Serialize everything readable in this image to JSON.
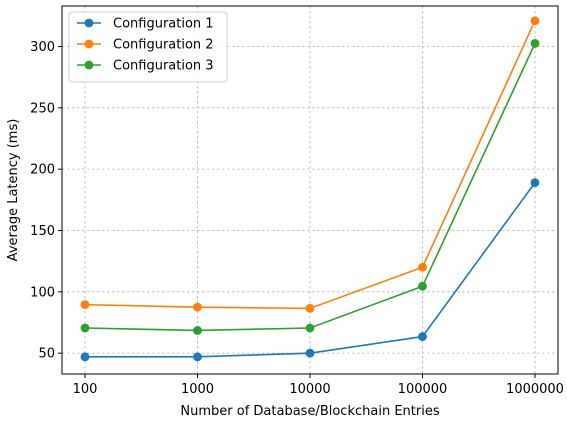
{
  "chart_data": {
    "type": "line",
    "title": "",
    "xlabel": "Number of Database/Blockchain Entries",
    "ylabel": "Average Latency (ms)",
    "categories": [
      "100",
      "1000",
      "10000",
      "100000",
      "1000000"
    ],
    "ylim": [
      33,
      333
    ],
    "yticks": [
      50,
      100,
      150,
      200,
      250,
      300
    ],
    "grid": true,
    "legend_position": "top-left",
    "series": [
      {
        "name": "Configuration 1",
        "color": "#1f77b4",
        "values": [
          47,
          47,
          50,
          63.5,
          189
        ]
      },
      {
        "name": "Configuration 2",
        "color": "#ff7f0e",
        "values": [
          89.5,
          87.5,
          86.5,
          120,
          321
        ]
      },
      {
        "name": "Configuration 3",
        "color": "#2ca02c",
        "values": [
          70.5,
          68.5,
          70.5,
          104.5,
          302.5
        ]
      }
    ]
  }
}
